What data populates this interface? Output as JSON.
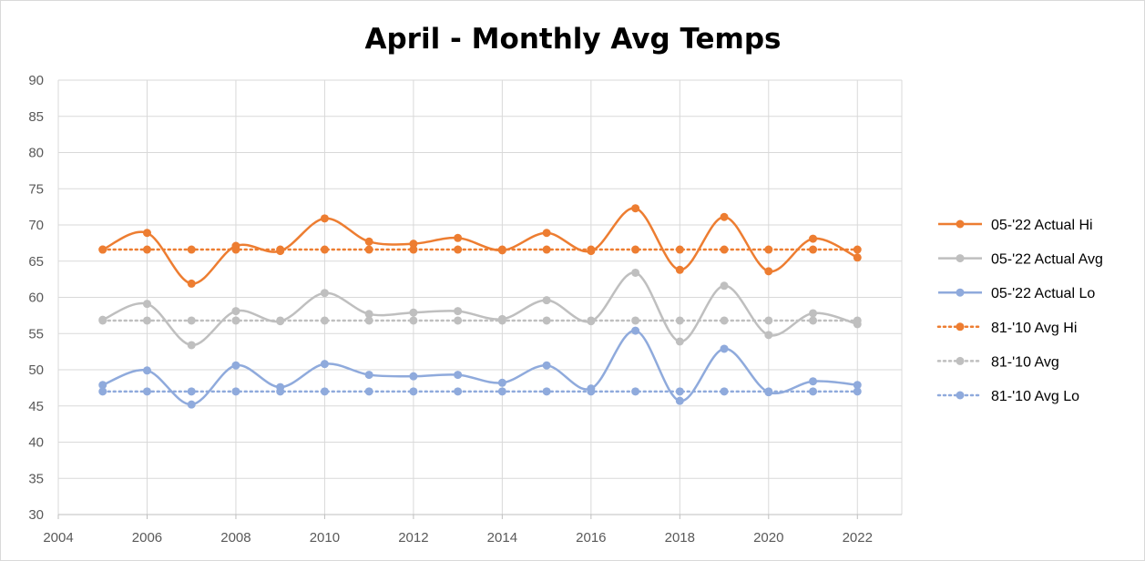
{
  "chart_data": {
    "type": "line",
    "title": "April - Monthly Avg Temps",
    "xlabel": "",
    "ylabel": "",
    "xlim": [
      2004,
      2023
    ],
    "ylim": [
      30,
      90
    ],
    "x_ticks": [
      2004,
      2006,
      2008,
      2010,
      2012,
      2014,
      2016,
      2018,
      2020,
      2022
    ],
    "y_ticks": [
      30,
      35,
      40,
      45,
      50,
      55,
      60,
      65,
      70,
      75,
      80,
      85,
      90
    ],
    "grid": true,
    "legend_position": "right",
    "x": [
      2005,
      2006,
      2007,
      2008,
      2009,
      2010,
      2011,
      2012,
      2013,
      2014,
      2015,
      2016,
      2017,
      2018,
      2019,
      2020,
      2021,
      2022
    ],
    "series": [
      {
        "name": "05-'22 Actual Hi",
        "color": "#ed7d31",
        "style": "smooth",
        "values": [
          66.6,
          68.9,
          61.9,
          67.1,
          66.4,
          70.9,
          67.7,
          67.4,
          68.2,
          66.5,
          68.9,
          66.4,
          72.3,
          63.8,
          71.1,
          63.6,
          68.1,
          65.5
        ]
      },
      {
        "name": "05-'22 Actual Avg",
        "color": "#bfbfbf",
        "style": "smooth",
        "values": [
          56.9,
          59.1,
          53.4,
          58.1,
          56.7,
          60.6,
          57.7,
          57.9,
          58.1,
          57.0,
          59.6,
          56.7,
          63.4,
          53.9,
          61.6,
          54.8,
          57.8,
          56.3
        ]
      },
      {
        "name": "05-'22 Actual Lo",
        "color": "#8faadc",
        "style": "smooth",
        "values": [
          47.9,
          49.9,
          45.2,
          50.6,
          47.6,
          50.8,
          49.3,
          49.1,
          49.3,
          48.2,
          50.6,
          47.4,
          55.4,
          45.7,
          52.9,
          46.9,
          48.4,
          47.9
        ]
      },
      {
        "name": "81-'10 Avg Hi",
        "color": "#ed7d31",
        "style": "dotted",
        "values": [
          66.6,
          66.6,
          66.6,
          66.6,
          66.6,
          66.6,
          66.6,
          66.6,
          66.6,
          66.6,
          66.6,
          66.6,
          66.6,
          66.6,
          66.6,
          66.6,
          66.6,
          66.6
        ]
      },
      {
        "name": "81-'10 Avg",
        "color": "#bfbfbf",
        "style": "dotted",
        "values": [
          56.8,
          56.8,
          56.8,
          56.8,
          56.8,
          56.8,
          56.8,
          56.8,
          56.8,
          56.8,
          56.8,
          56.8,
          56.8,
          56.8,
          56.8,
          56.8,
          56.8,
          56.8
        ]
      },
      {
        "name": "81-'10 Avg Lo",
        "color": "#8faadc",
        "style": "dotted",
        "values": [
          47.0,
          47.0,
          47.0,
          47.0,
          47.0,
          47.0,
          47.0,
          47.0,
          47.0,
          47.0,
          47.0,
          47.0,
          47.0,
          47.0,
          47.0,
          47.0,
          47.0,
          47.0
        ]
      }
    ]
  }
}
